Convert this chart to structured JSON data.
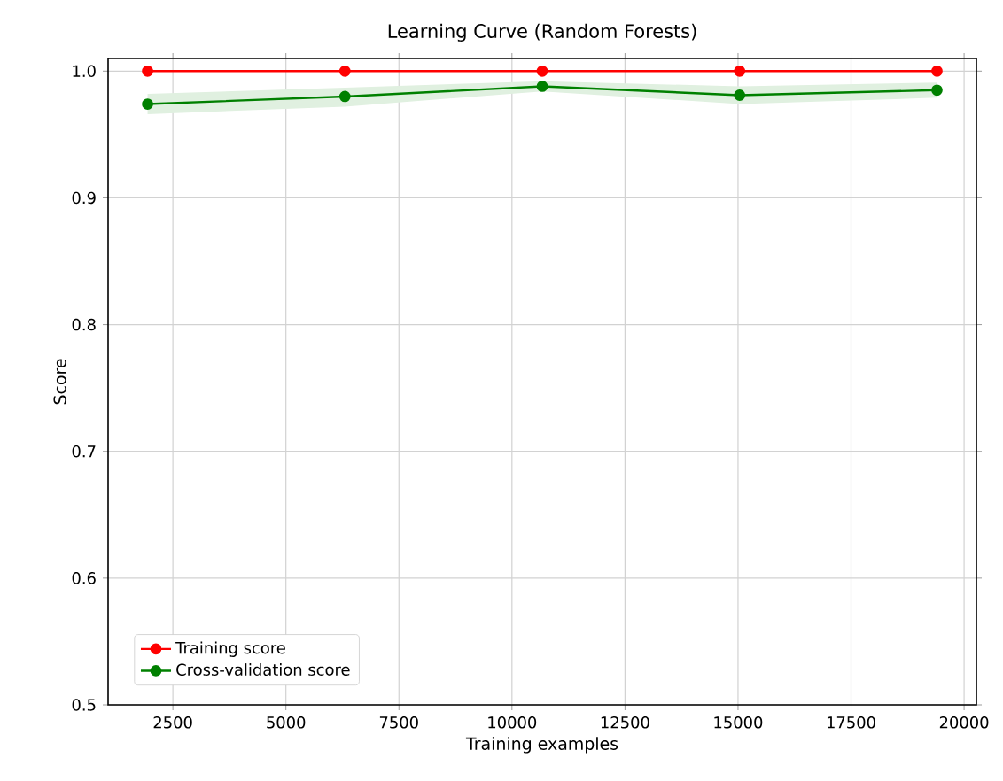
{
  "chart_data": {
    "type": "line",
    "title": "Learning Curve (Random Forests)",
    "xlabel": "Training examples",
    "ylabel": "Score",
    "x": [
      1940,
      6305,
      10670,
      15035,
      19400
    ],
    "series": [
      {
        "name": "Training score",
        "color": "#ff0000",
        "values": [
          1.0,
          1.0,
          1.0,
          1.0,
          1.0
        ]
      },
      {
        "name": "Cross-validation score",
        "color": "#008000",
        "values": [
          0.974,
          0.98,
          0.988,
          0.981,
          0.985
        ],
        "lower": [
          0.966,
          0.972,
          0.984,
          0.974,
          0.979
        ],
        "upper": [
          0.982,
          0.987,
          0.992,
          0.988,
          0.991
        ]
      }
    ],
    "xlim": [
      1067,
      20273
    ],
    "ylim": [
      0.5,
      1.01
    ],
    "xticks": [
      2500,
      5000,
      7500,
      10000,
      12500,
      15000,
      17500,
      20000
    ],
    "yticks": [
      0.5,
      0.6,
      0.7,
      0.8,
      0.9,
      {
        "value": 1,
        "label": "1.0"
      }
    ],
    "grid": true,
    "legend": "bottom left",
    "marker": "circle",
    "line_style": "solid"
  }
}
